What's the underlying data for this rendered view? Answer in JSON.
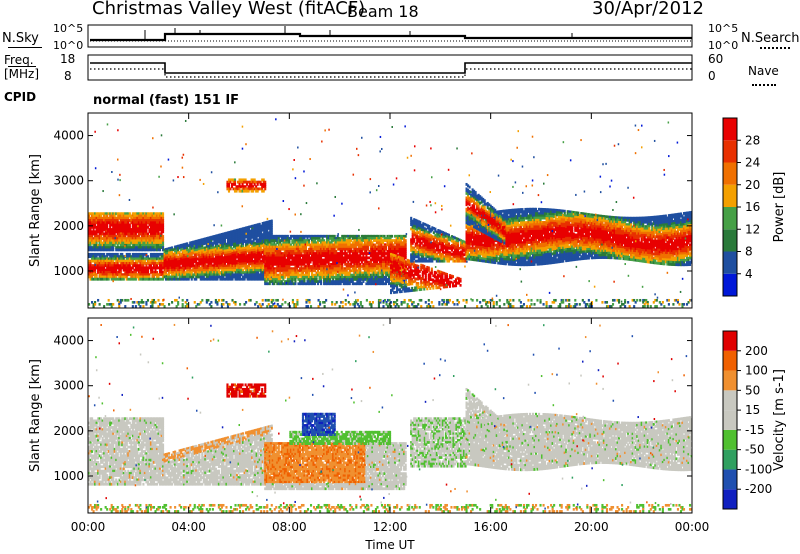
{
  "header": {
    "station": "Christmas Valley West (fitACF)",
    "beam": "Beam 18",
    "date": "30/Apr/2012"
  },
  "params": {
    "nsky_label": "N.Sky",
    "nsky_top": "10^5",
    "nsky_bot": "10^0",
    "nsearch_label": "N.Search",
    "nsearch_top": "10^5",
    "nsearch_bot": "10^0",
    "freq_label_1": "Freq.",
    "freq_label_2": "[MHz]",
    "freq_top": "18",
    "freq_bot": "8",
    "nave_label": "Nave",
    "nave_top": "60",
    "nave_bot": "0",
    "cpid_label": "CPID",
    "cpid_value": "normal (fast) 151 IF"
  },
  "colors": {
    "power": [
      "#0018d8",
      "#1f4fa0",
      "#2a7a3a",
      "#46a046",
      "#f4a000",
      "#f07000",
      "#e83000",
      "#e80000"
    ],
    "velocity": [
      "#e00000",
      "#f06000",
      "#f09030",
      "#c8c8c0",
      "#c8c8c0",
      "#50c030",
      "#30a060",
      "#2050b0",
      "#1020c0"
    ]
  },
  "chart_data": [
    {
      "type": "heatmap",
      "panel": "power",
      "ylabel": "Slant Range [km]",
      "xlabel": "Time UT",
      "x_ticks": [
        "00:00",
        "04:00",
        "08:00",
        "12:00",
        "16:00",
        "20:00",
        "00:00"
      ],
      "y_ticks": [
        "1000",
        "2000",
        "3000",
        "4000"
      ],
      "y_values": [
        1000,
        2000,
        3000,
        4000
      ],
      "ylim": [
        180,
        4500
      ],
      "colorbar_label": "Power [dB]",
      "colorbar_ticks": [
        "4",
        "8",
        "12",
        "16",
        "20",
        "24",
        "28"
      ]
    },
    {
      "type": "heatmap",
      "panel": "velocity",
      "ylabel": "Slant Range [km]",
      "xlabel": "Time UT",
      "x_ticks": [
        "00:00",
        "04:00",
        "08:00",
        "12:00",
        "16:00",
        "20:00",
        "00:00"
      ],
      "y_ticks": [
        "1000",
        "2000",
        "3000",
        "4000"
      ],
      "y_values": [
        1000,
        2000,
        3000,
        4000
      ],
      "ylim": [
        180,
        4500
      ],
      "colorbar_label": "Velocity [m s-1]",
      "colorbar_ticks": [
        "200",
        "100",
        "50",
        "15",
        "-15",
        "-50",
        "-100",
        "-200"
      ]
    }
  ]
}
